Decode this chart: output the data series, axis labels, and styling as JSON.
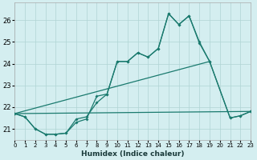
{
  "xlabel": "Humidex (Indice chaleur)",
  "bg_color": "#d4eef0",
  "grid_color": "#b0d4d4",
  "line_color": "#1a7a6e",
  "xlim": [
    0,
    23
  ],
  "ylim": [
    20.5,
    26.8
  ],
  "yticks": [
    21,
    22,
    23,
    24,
    25,
    26
  ],
  "xticks": [
    0,
    1,
    2,
    3,
    4,
    5,
    6,
    7,
    8,
    9,
    10,
    11,
    12,
    13,
    14,
    15,
    16,
    17,
    18,
    19,
    20,
    21,
    22,
    23
  ],
  "line1_x": [
    0,
    1,
    2,
    3,
    4,
    5,
    6,
    7,
    8,
    9,
    10,
    11,
    12,
    13,
    14,
    15,
    16,
    17,
    18,
    19,
    21,
    22,
    23
  ],
  "line1_y": [
    21.7,
    21.55,
    21.0,
    20.75,
    20.75,
    20.8,
    21.45,
    21.55,
    22.2,
    22.6,
    24.1,
    24.1,
    24.5,
    24.3,
    24.7,
    26.3,
    25.8,
    26.2,
    25.0,
    24.1,
    21.5,
    21.6,
    21.8
  ],
  "line2_x": [
    0,
    1,
    2,
    3,
    4,
    5,
    6,
    7,
    8,
    9,
    10,
    11,
    12,
    13,
    14,
    15,
    16,
    17,
    18,
    19,
    21,
    22,
    23
  ],
  "line2_y": [
    21.7,
    21.55,
    21.0,
    20.75,
    20.75,
    20.8,
    21.3,
    21.45,
    22.5,
    22.6,
    24.1,
    24.1,
    24.5,
    24.3,
    24.7,
    26.3,
    25.8,
    26.2,
    24.95,
    24.1,
    21.5,
    21.6,
    21.8
  ],
  "line3_x": [
    0,
    23
  ],
  "line3_y": [
    21.7,
    21.8
  ],
  "line4_x": [
    0,
    19
  ],
  "line4_y": [
    21.7,
    24.1
  ]
}
